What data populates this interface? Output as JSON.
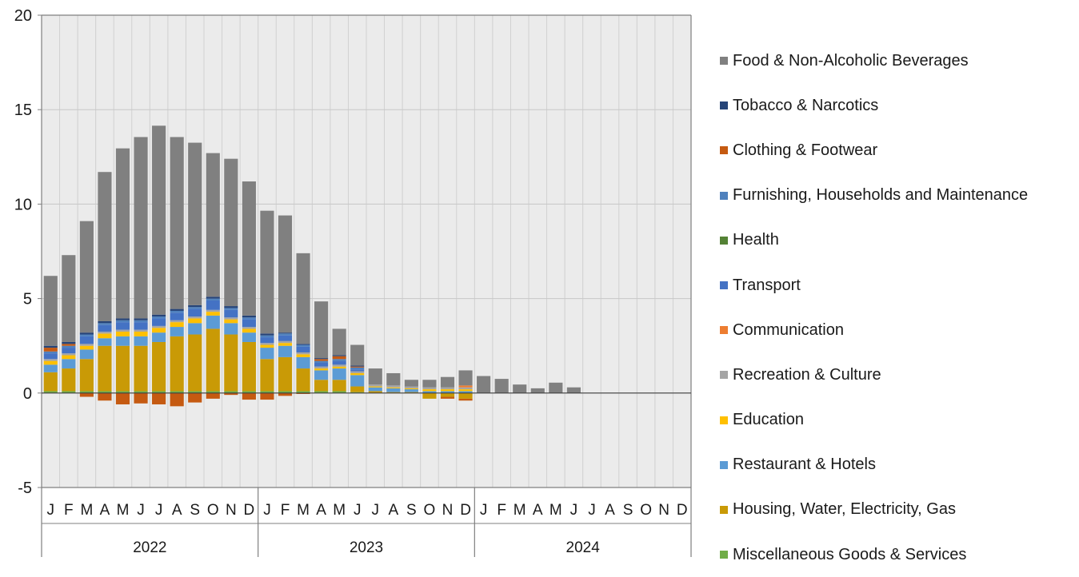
{
  "chart_data": {
    "type": "bar",
    "stacked": true,
    "ylim": [
      -5,
      20
    ],
    "y_ticks": [
      "20",
      "15",
      "10",
      "5",
      "0",
      "-5"
    ],
    "grid": true,
    "legend_position": "right",
    "month_labels": [
      "J",
      "F",
      "M",
      "A",
      "M",
      "J",
      "J",
      "A",
      "S",
      "O",
      "N",
      "D",
      "J",
      "F",
      "M",
      "A",
      "M",
      "J",
      "J",
      "A",
      "S",
      "O",
      "N",
      "D",
      "J",
      "F",
      "M",
      "A",
      "M",
      "J",
      "J",
      "A",
      "S",
      "O",
      "N",
      "D"
    ],
    "year_labels": [
      "2022",
      "2023",
      "2024"
    ],
    "series": [
      {
        "name": "Miscellaneous Goods & Services",
        "color": "#70ad47",
        "values": [
          0.1,
          0.1,
          0.1,
          0.1,
          0.1,
          0.1,
          0.1,
          0.1,
          0.1,
          0.1,
          0.1,
          0.1,
          0.1,
          0.1,
          0.1,
          0.1,
          0.1,
          0.05,
          0,
          0,
          0,
          0,
          0,
          0,
          0,
          0,
          0,
          0,
          0,
          0,
          0,
          0,
          0,
          0,
          0,
          0
        ]
      },
      {
        "name": "Housing, Water, Electricity, Gas",
        "color": "#c99a06",
        "values": [
          1.0,
          1.2,
          1.7,
          2.4,
          2.4,
          2.4,
          2.6,
          2.9,
          3.0,
          3.3,
          3.0,
          2.6,
          1.7,
          1.8,
          1.2,
          0.6,
          0.6,
          0.3,
          0.1,
          0.05,
          0.05,
          -0.3,
          -0.2,
          -0.3,
          0,
          0,
          0,
          0,
          0,
          0,
          0,
          0,
          0,
          0,
          0,
          0
        ]
      },
      {
        "name": "Restaurant & Hotels",
        "color": "#5b9bd5",
        "values": [
          0.4,
          0.5,
          0.5,
          0.4,
          0.5,
          0.5,
          0.5,
          0.5,
          0.6,
          0.7,
          0.6,
          0.5,
          0.6,
          0.6,
          0.6,
          0.5,
          0.6,
          0.6,
          0.2,
          0.2,
          0.15,
          0.1,
          0.1,
          0.1,
          0,
          0,
          0,
          0,
          0,
          0,
          0,
          0,
          0,
          0,
          0,
          0
        ]
      },
      {
        "name": "Education",
        "color": "#ffc000",
        "values": [
          0.2,
          0.2,
          0.2,
          0.25,
          0.25,
          0.25,
          0.25,
          0.25,
          0.25,
          0.2,
          0.2,
          0.2,
          0.15,
          0.15,
          0.15,
          0.1,
          0.1,
          0.1,
          0.05,
          0.05,
          0.05,
          0.1,
          0.1,
          0.1,
          0,
          0,
          0,
          0,
          0,
          0,
          0,
          0,
          0,
          0,
          0,
          0
        ]
      },
      {
        "name": "Recreation & Culture",
        "color": "#a5a5a5",
        "values": [
          0.1,
          0.1,
          0.1,
          0.1,
          0.1,
          0.1,
          0.1,
          0.1,
          0.1,
          0.1,
          0.1,
          0.1,
          0.1,
          0.1,
          0.1,
          0.1,
          0.1,
          0.1,
          0.1,
          0.1,
          0.1,
          0.1,
          0.1,
          0.1,
          0,
          0,
          0,
          0,
          0,
          0,
          0,
          0,
          0,
          0,
          0,
          0
        ]
      },
      {
        "name": "Communication",
        "color": "#ed7d31",
        "values": [
          0,
          0,
          0,
          0,
          0,
          0,
          0,
          0,
          0,
          0,
          0,
          0,
          0,
          0,
          0,
          0,
          0,
          0,
          0,
          0,
          0,
          0,
          0,
          0.1,
          0,
          0,
          0,
          0,
          0,
          0,
          0,
          0,
          0,
          0,
          0,
          0
        ]
      },
      {
        "name": "Transport",
        "color": "#4472c4",
        "values": [
          0.3,
          0.3,
          0.4,
          0.35,
          0.4,
          0.4,
          0.4,
          0.4,
          0.4,
          0.5,
          0.4,
          0.4,
          0.3,
          0.3,
          0.3,
          0.2,
          0.2,
          0.1,
          0,
          0,
          0,
          0,
          0,
          0,
          0,
          0,
          0,
          0,
          0,
          0,
          0,
          0,
          0,
          0,
          0,
          0
        ]
      },
      {
        "name": "Health",
        "color": "#548235",
        "values": [
          0,
          0,
          0,
          0,
          0,
          0,
          0,
          0,
          0,
          0,
          0,
          0,
          0,
          0,
          0,
          0,
          0,
          0,
          0,
          0,
          0,
          0,
          0,
          0,
          0,
          0,
          0,
          0,
          0,
          0,
          0,
          0,
          0,
          0,
          0,
          0
        ]
      },
      {
        "name": "Furnishing, Households and Maintenance",
        "color": "#4f81bd",
        "values": [
          0.1,
          0.1,
          0.1,
          0.1,
          0.1,
          0.1,
          0.1,
          0.1,
          0.1,
          0.1,
          0.1,
          0.1,
          0.1,
          0.1,
          0.1,
          0.1,
          0.1,
          0.1,
          0,
          0,
          0,
          0,
          0,
          0,
          0,
          0,
          0,
          0,
          0,
          0,
          0,
          0,
          0,
          0,
          0,
          0
        ]
      },
      {
        "name": "Clothing & Footwear",
        "color": "#c55a11",
        "values": [
          0.2,
          0.1,
          -0.2,
          -0.4,
          -0.6,
          -0.55,
          -0.6,
          -0.7,
          -0.5,
          -0.3,
          -0.1,
          -0.35,
          -0.35,
          -0.15,
          -0.05,
          0.1,
          0.15,
          0.05,
          0,
          0,
          0,
          0,
          -0.1,
          -0.1,
          0,
          0,
          0,
          0,
          0,
          0,
          0,
          0,
          0,
          0,
          0,
          0
        ]
      },
      {
        "name": "Tobacco & Narcotics",
        "color": "#264478",
        "values": [
          0.1,
          0.1,
          0.1,
          0.1,
          0.1,
          0.1,
          0.1,
          0.1,
          0.1,
          0.1,
          0.1,
          0.1,
          0.1,
          0.05,
          0.05,
          0.05,
          0.05,
          0.05,
          0,
          0,
          0,
          0,
          0,
          0,
          0,
          0,
          0,
          0,
          0,
          0,
          0,
          0,
          0,
          0,
          0,
          0
        ]
      },
      {
        "name": "Food & Non-Alcoholic Beverages",
        "color": "#808080",
        "values": [
          3.7,
          4.6,
          5.9,
          7.9,
          9.0,
          9.6,
          10.0,
          9.1,
          8.6,
          7.6,
          7.8,
          7.1,
          6.5,
          6.2,
          4.8,
          3.0,
          1.4,
          1.1,
          0.85,
          0.65,
          0.35,
          0.4,
          0.55,
          0.8,
          0.9,
          0.75,
          0.45,
          0.25,
          0.55,
          0.3,
          0,
          0,
          0,
          0,
          0,
          0
        ]
      }
    ]
  },
  "legend": {
    "items": [
      {
        "label": "Food & Non-Alcoholic Beverages",
        "color": "#808080"
      },
      {
        "label": "Tobacco & Narcotics",
        "color": "#264478"
      },
      {
        "label": "Clothing & Footwear",
        "color": "#c55a11"
      },
      {
        "label": "Furnishing, Households and Maintenance",
        "color": "#4f81bd"
      },
      {
        "label": "Health",
        "color": "#548235"
      },
      {
        "label": "Transport",
        "color": "#4472c4"
      },
      {
        "label": "Communication",
        "color": "#ed7d31"
      },
      {
        "label": "Recreation & Culture",
        "color": "#a5a5a5"
      },
      {
        "label": "Education",
        "color": "#ffc000"
      },
      {
        "label": "Restaurant & Hotels",
        "color": "#5b9bd5"
      },
      {
        "label": "Housing, Water, Electricity, Gas",
        "color": "#c99a06"
      },
      {
        "label": "Miscellaneous Goods & Services",
        "color": "#70ad47"
      }
    ]
  }
}
